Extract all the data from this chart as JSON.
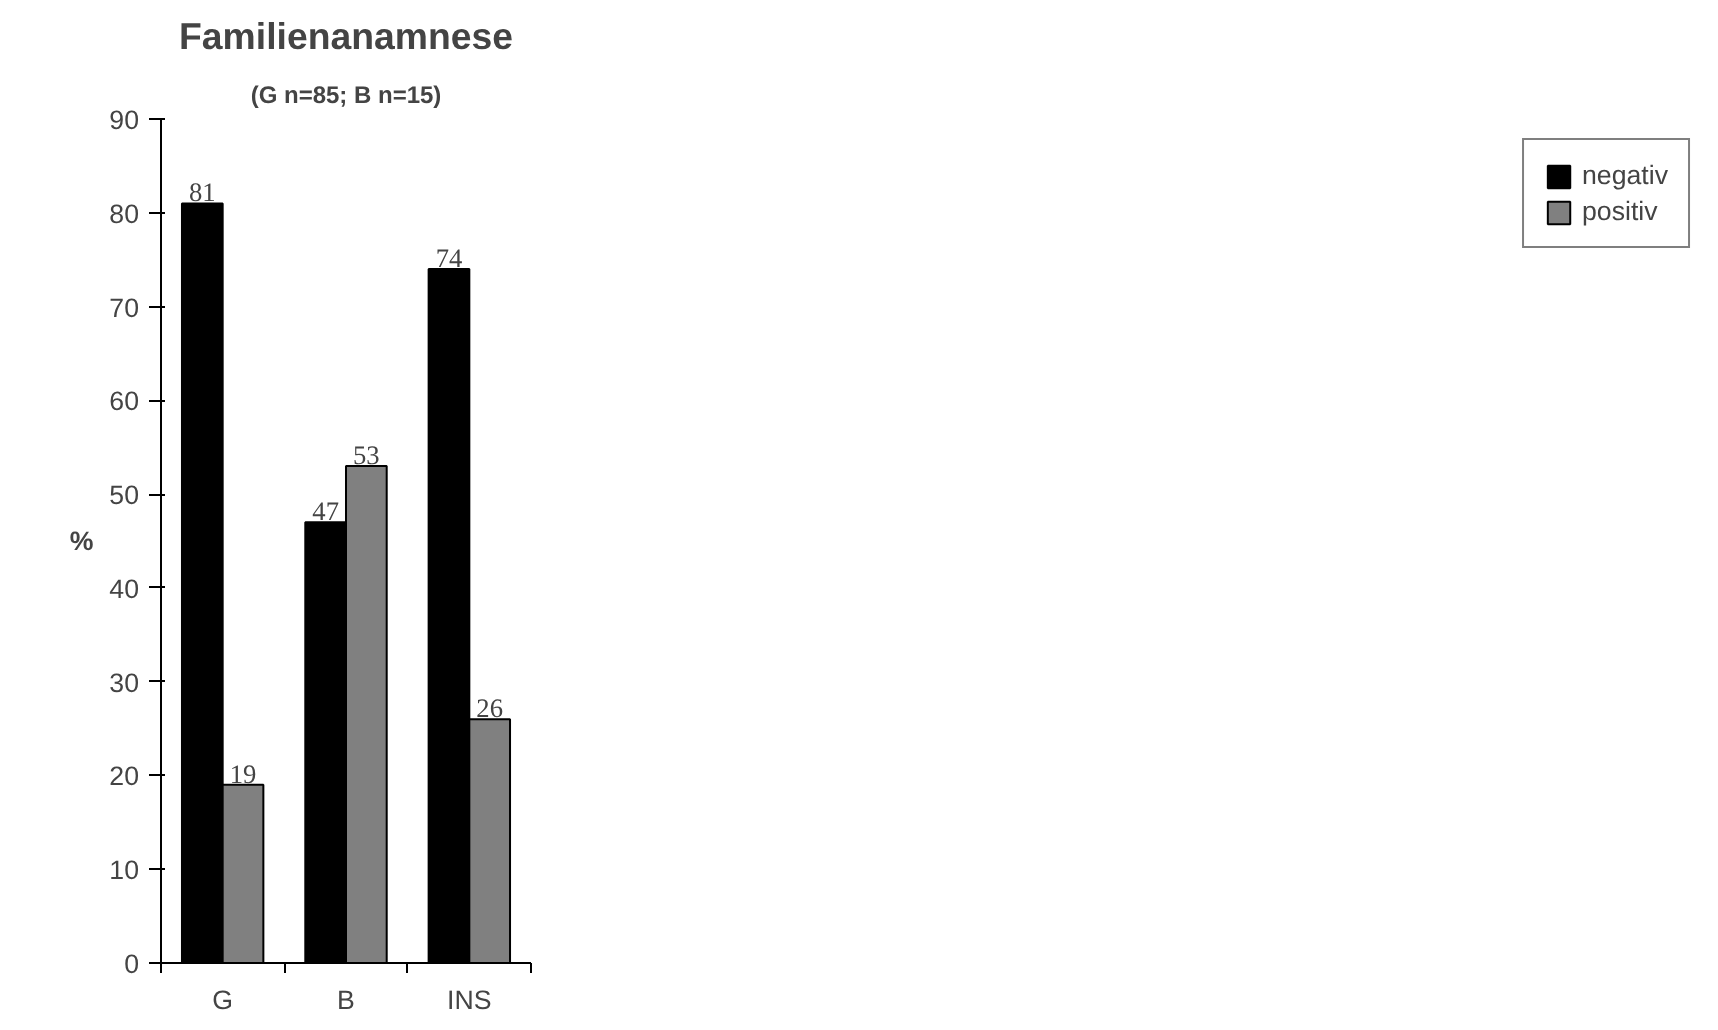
{
  "chart_data": {
    "type": "bar",
    "title": "Familienanamnese",
    "subtitle": "(G n=85; B n=15)",
    "ylabel": "%",
    "categories": [
      "G",
      "B",
      "INS"
    ],
    "series": [
      {
        "name": "negativ",
        "color": "#000000",
        "values": [
          81,
          47,
          74
        ]
      },
      {
        "name": "positiv",
        "color": "#808080",
        "values": [
          19,
          53,
          26
        ]
      }
    ],
    "ylim": [
      0,
      90
    ],
    "yticks": [
      0,
      10,
      20,
      30,
      40,
      50,
      60,
      70,
      80,
      90
    ],
    "grid": false,
    "legend": "right",
    "data_labels": true
  }
}
